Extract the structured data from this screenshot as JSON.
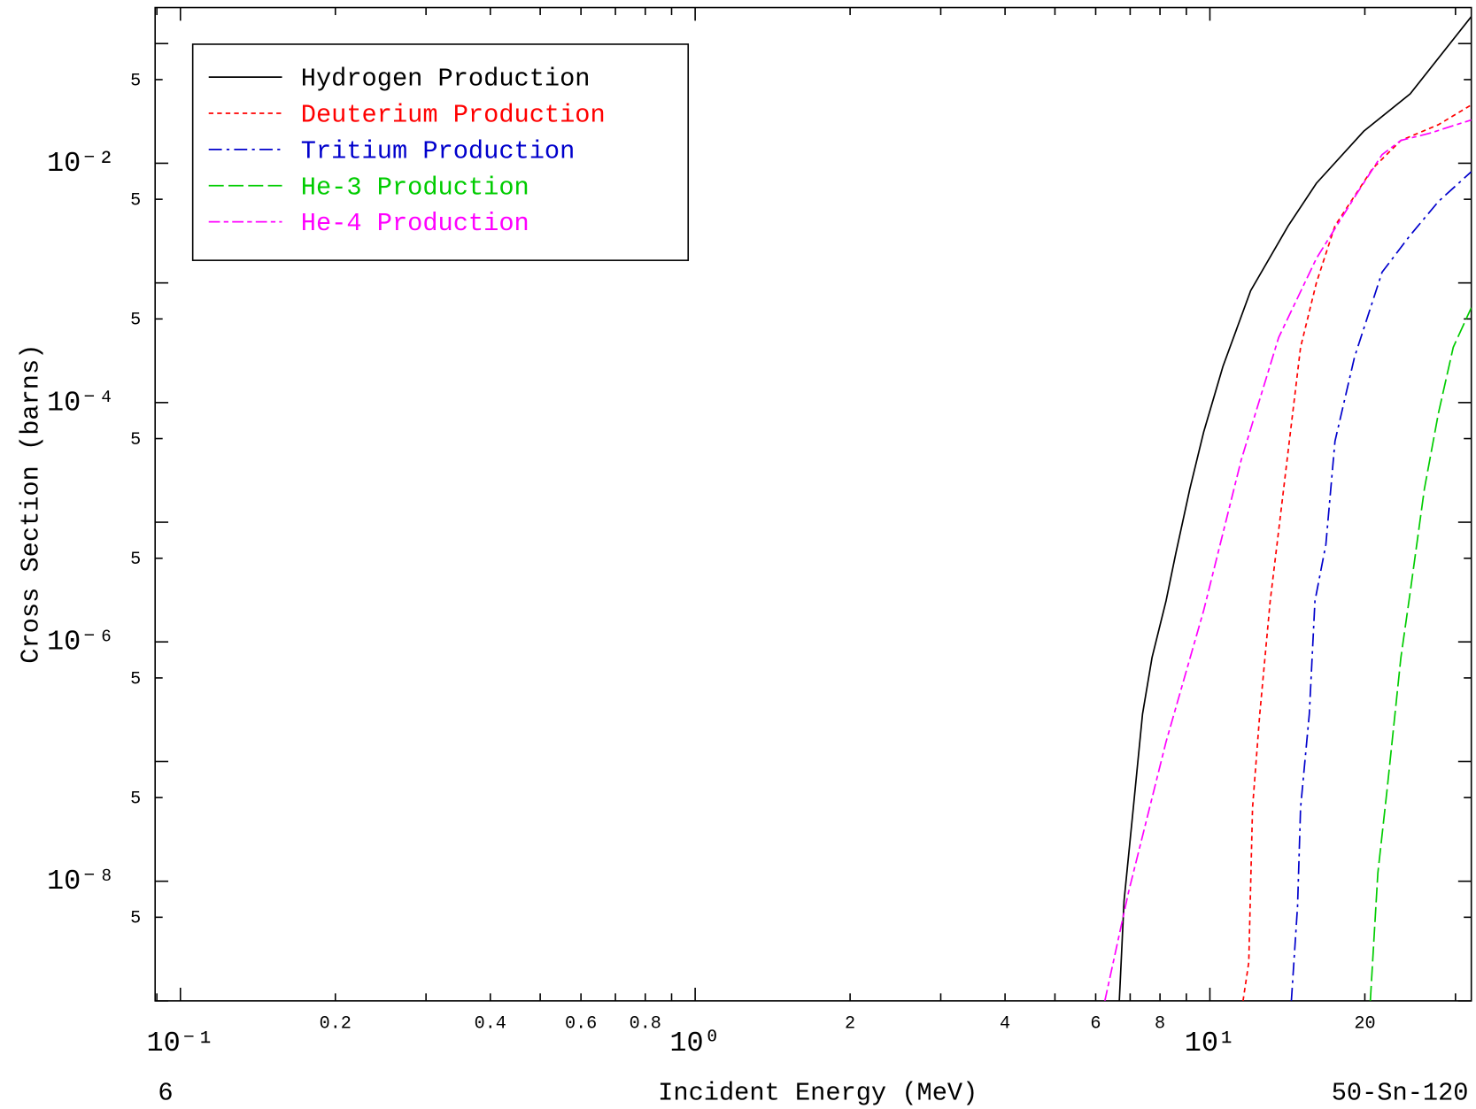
{
  "chart_data": {
    "type": "line",
    "xlabel": "Incident Energy (MeV)",
    "ylabel": "Cross Section (barns)",
    "corner_left": "6",
    "corner_right": "50-Sn-120",
    "xlog": true,
    "ylog": true,
    "legend": "upper left",
    "xlim": [
      0.0893,
      32.2
    ],
    "ylim": [
      1e-09,
      0.2
    ],
    "xticks": [
      {
        "value": 0.1,
        "label": "10⁻¹"
      },
      0.2,
      0.4,
      0.6,
      0.8,
      {
        "value": 1,
        "label": "10⁰"
      },
      2,
      4,
      6,
      8,
      {
        "value": 10,
        "label": "10¹"
      },
      20
    ],
    "xminor": [
      0.09,
      0.3,
      0.5,
      0.7,
      0.9,
      3,
      5,
      7,
      9,
      30
    ],
    "yticks": [
      {
        "value": 0.05,
        "label": "5"
      },
      {
        "value": 0.01,
        "label": "10⁻²"
      },
      {
        "value": 0.005,
        "label": "5"
      },
      {
        "value": 0.0005,
        "label": "5"
      },
      {
        "value": 0.0001,
        "label": "10⁻⁴"
      },
      {
        "value": 5e-05,
        "label": "5"
      },
      {
        "value": 5e-06,
        "label": "5"
      },
      {
        "value": 1e-06,
        "label": "10⁻⁶"
      },
      {
        "value": 5e-07,
        "label": "5"
      },
      {
        "value": 5e-08,
        "label": "5"
      },
      {
        "value": 1e-08,
        "label": "10⁻⁸"
      },
      {
        "value": 5e-09,
        "label": "5"
      }
    ],
    "yminor": [
      0.1,
      0.001,
      1e-05,
      1e-07,
      1e-09
    ],
    "series": [
      {
        "name": "Hydrogen Production",
        "color": "#000000",
        "dash": "none",
        "x": [
          6.67,
          6.81,
          7.1,
          7.4,
          7.72,
          8.22,
          8.58,
          9.14,
          9.73,
          10.6,
          12.0,
          14.2,
          16.1,
          19.9,
          24.5,
          32.2
        ],
        "values": [
          1e-09,
          6.8e-09,
          4.1e-08,
          2.5e-07,
          7.4e-07,
          2.2e-06,
          5.4e-06,
          1.9e-05,
          5.7e-05,
          0.0002,
          0.00086,
          0.003,
          0.0068,
          0.0185,
          0.038,
          0.168
        ]
      },
      {
        "name": "Deuterium Production",
        "color": "#ff0000",
        "dash": "5,4",
        "x": [
          11.6,
          11.9,
          12.1,
          12.5,
          13.1,
          13.5,
          14.2,
          15.0,
          16.1,
          17.5,
          20.7,
          23.5,
          27.8,
          32.2
        ],
        "values": [
          1e-09,
          2.1e-09,
          4.1e-08,
          2.5e-07,
          2.2e-06,
          6.5e-06,
          4e-05,
          0.00029,
          0.001,
          0.003,
          0.009,
          0.0155,
          0.021,
          0.0307
        ]
      },
      {
        "name": "Tritium Production",
        "color": "#0000cc",
        "dash": "14,5,3,5",
        "x": [
          14.4,
          14.8,
          15.0,
          15.6,
          16.0,
          16.8,
          17.5,
          19.1,
          21.6,
          24.5,
          27.8,
          32.2
        ],
        "values": [
          1e-09,
          6.2e-09,
          4.1e-08,
          2.5e-07,
          2.2e-06,
          6.5e-06,
          4.75e-05,
          0.00024,
          0.00123,
          0.0025,
          0.0048,
          0.0085
        ]
      },
      {
        "name": "He-3 Production",
        "color": "#00cc00",
        "dash": "16,5",
        "x": [
          20.5,
          21.2,
          22.1,
          23.5,
          24.5,
          26.1,
          27.8,
          29.7,
          32.2
        ],
        "values": [
          1e-09,
          1.17e-08,
          5.9e-08,
          7.4e-07,
          2.6e-06,
          1.9e-05,
          8.2e-05,
          0.00029,
          0.00062
        ]
      },
      {
        "name": "He-4 Production",
        "color": "#ff00ff",
        "dash": "12,4,5,4",
        "x": [
          6.25,
          6.95,
          8.22,
          9.73,
          11.5,
          13.6,
          16.1,
          19.1,
          21.6,
          23.5,
          26.7,
          32.2
        ],
        "values": [
          1e-09,
          8.1e-09,
          1.46e-07,
          1.84e-06,
          3.3e-05,
          0.00035,
          0.0016,
          0.0052,
          0.0118,
          0.0155,
          0.0178,
          0.023
        ]
      }
    ]
  }
}
